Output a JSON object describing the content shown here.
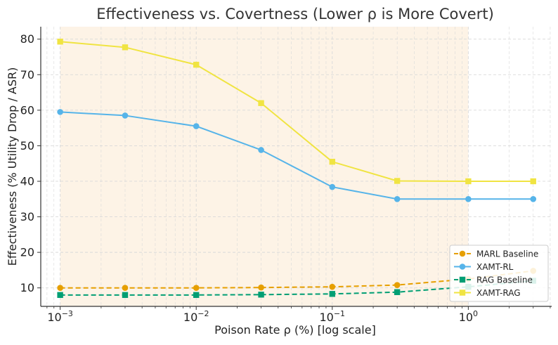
{
  "chart_data": {
    "type": "line",
    "title": "Effectiveness vs. Covertness (Lower ρ is More Covert)",
    "xlabel": "Poison Rate ρ (%) [log scale]",
    "ylabel": "Effectiveness (% Utility Drop / ASR)",
    "x_scale": "log",
    "xlim": [
      0.00072,
      4.1
    ],
    "ylim": [
      4.8,
      83.5
    ],
    "x_ticks": [
      {
        "value": 0.001,
        "base": "10",
        "exp": "−3"
      },
      {
        "value": 0.01,
        "base": "10",
        "exp": "−2"
      },
      {
        "value": 0.1,
        "base": "10",
        "exp": "−1"
      },
      {
        "value": 1,
        "base": "10",
        "exp": "0"
      }
    ],
    "y_ticks": [
      10,
      20,
      30,
      40,
      50,
      60,
      70,
      80
    ],
    "grid": true,
    "shaded_region": {
      "x_from": 0.001,
      "x_to": 1,
      "color": "#fdf3e6"
    },
    "legend_position": "lower-right",
    "x": [
      0.001,
      0.003,
      0.01,
      0.03,
      0.1,
      0.3,
      1,
      3
    ],
    "series": [
      {
        "name": "MARL Baseline",
        "values": [
          10.0,
          10.0,
          10.0,
          10.1,
          10.3,
          10.8,
          12.5,
          14.8
        ],
        "color": "#e69f00",
        "dashed": true,
        "marker": "circle"
      },
      {
        "name": "XAMT-RL",
        "values": [
          59.5,
          58.5,
          55.5,
          48.8,
          38.4,
          35.0,
          35.0,
          35.0
        ],
        "color": "#56b4e9",
        "dashed": false,
        "marker": "circle"
      },
      {
        "name": "RAG Baseline",
        "values": [
          8.0,
          8.0,
          8.0,
          8.1,
          8.3,
          8.8,
          10.3,
          12.0
        ],
        "color": "#009e73",
        "dashed": true,
        "marker": "square"
      },
      {
        "name": "XAMT-RAG",
        "values": [
          79.3,
          77.7,
          72.8,
          62.0,
          45.5,
          40.1,
          40.0,
          40.0
        ],
        "color": "#f0e442",
        "dashed": false,
        "marker": "square"
      }
    ]
  }
}
